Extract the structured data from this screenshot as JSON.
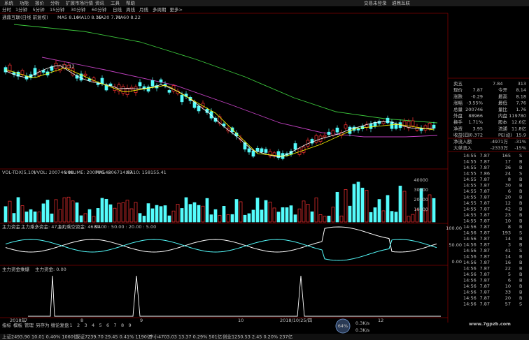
{
  "menu": [
    "系统",
    "功能",
    "报价",
    "分析",
    "扩展市场行情",
    "资讯",
    "工具",
    "帮助"
  ],
  "header": {
    "account": "交易未登录",
    "stock": "通鼎互联"
  },
  "periods": [
    "分时",
    "1分钟",
    "5分钟",
    "15分钟",
    "30分钟",
    "60分钟",
    "日线",
    "周线",
    "月线",
    "多周期",
    "更多>"
  ],
  "price_panel": {
    "title": "通鼎互联(日线 前复权)",
    "ma": [
      "MA5 8.16",
      "MA10 8.15",
      "MA20 7.71",
      "MA60 8.22"
    ],
    "high_label": "11.13"
  },
  "volume_panel": {
    "title": "VOL-TDX(5,10)",
    "items": [
      "VVOL: 200746.48",
      "VOLUME: 200746.48",
      "MA5: 206714.97",
      "MA10: 158155.41"
    ],
    "axis": [
      "40000",
      "30000",
      "20000",
      "10000"
    ]
  },
  "fund_panel": {
    "title": "主力资金",
    "items": [
      "主力乘多资金: 47.04",
      "主力乘空资金: 46.94",
      "80.00 : 50.00 : 20.00 : 5.00"
    ],
    "axis": [
      "100.00",
      "50.00",
      "0.00"
    ]
  },
  "burst_panel": {
    "title": "主力资金乘爆",
    "items": [
      "主力资金: 0.00"
    ]
  },
  "dates": [
    "2018年",
    "7",
    "8",
    "9",
    "10",
    "2018/10/25/四",
    "12"
  ],
  "tabs": [
    "指标",
    "模板",
    "管理",
    "另存为",
    "缠论复盘",
    "1",
    "2",
    "3",
    "4",
    "5",
    "6",
    "7",
    "8",
    "9"
  ],
  "quote": [
    [
      "卖五",
      "7.84",
      "313"
    ],
    [
      "现价",
      "7.87",
      "今开",
      "8.14"
    ],
    [
      "涨跌",
      "-0.29",
      "最高",
      "8.18"
    ],
    [
      "涨幅",
      "-3.55%",
      "最低",
      "7.76"
    ],
    [
      "总量",
      "200746",
      "量比",
      "1.76"
    ],
    [
      "外盘",
      "88966",
      "内盘",
      "119780"
    ],
    [
      "换手",
      "1.71%",
      "股本",
      "12.6亿"
    ],
    [
      "净资",
      "3.95",
      "流通",
      "11.8亿"
    ],
    [
      "收益(四)",
      "0.372",
      "PE(动)",
      "15.9"
    ]
  ],
  "flow": [
    [
      "净流入额",
      "-4971万",
      "-31%"
    ],
    [
      "大单流入",
      "-2333万",
      "-15%"
    ]
  ],
  "ticks": [
    [
      "14:55",
      "7.87",
      "165",
      "S"
    ],
    [
      "14:55",
      "7.87",
      "17",
      "B"
    ],
    [
      "14:55",
      "7.87",
      "36",
      "B"
    ],
    [
      "14:55",
      "7.86",
      "24",
      "S"
    ],
    [
      "14:55",
      "7.87",
      "8",
      "B"
    ],
    [
      "14:55",
      "7.87",
      "30",
      "B"
    ],
    [
      "14:55",
      "7.87",
      "6",
      "B"
    ],
    [
      "14:55",
      "7.87",
      "20",
      "B"
    ],
    [
      "14:55",
      "7.87",
      "12",
      "B"
    ],
    [
      "14:55",
      "7.87",
      "42",
      "B"
    ],
    [
      "14:55",
      "7.87",
      "23",
      "B"
    ],
    [
      "14:55",
      "7.87",
      "10",
      "B"
    ],
    [
      "14:56",
      "7.87",
      "8",
      "B"
    ],
    [
      "14:56",
      "7.87",
      "193",
      "S"
    ],
    [
      "14:56",
      "7.87",
      "14",
      "B"
    ],
    [
      "14:56",
      "7.87",
      "3",
      "B"
    ],
    [
      "14:56",
      "7.87",
      "41",
      "S"
    ],
    [
      "14:56",
      "7.87",
      "14",
      "B"
    ],
    [
      "14:56",
      "7.87",
      "16",
      "B"
    ],
    [
      "14:56",
      "7.87",
      "22",
      "B"
    ],
    [
      "14:56",
      "7.87",
      "5",
      "B"
    ],
    [
      "14:56",
      "7.87",
      "6",
      "B"
    ],
    [
      "14:56",
      "7.87",
      "10",
      "B"
    ],
    [
      "14:56",
      "7.87",
      "33",
      "B"
    ],
    [
      "14:56",
      "7.87",
      "20",
      "B"
    ],
    [
      "14:56",
      "7.87",
      "57",
      "S"
    ]
  ],
  "network": {
    "load": "64%",
    "up": "0.3K/s",
    "down": "0.3K/s"
  },
  "status": [
    "上证2493.90 10.01 0.40% 1060亿",
    "深证7239.70 29.45 0.41% 1190亿",
    "中小4703.03 13.37 0.29% 501亿",
    "创业1250.53 2.45 0.20% 237亿"
  ],
  "watermark": "www.7gpzb.com"
}
